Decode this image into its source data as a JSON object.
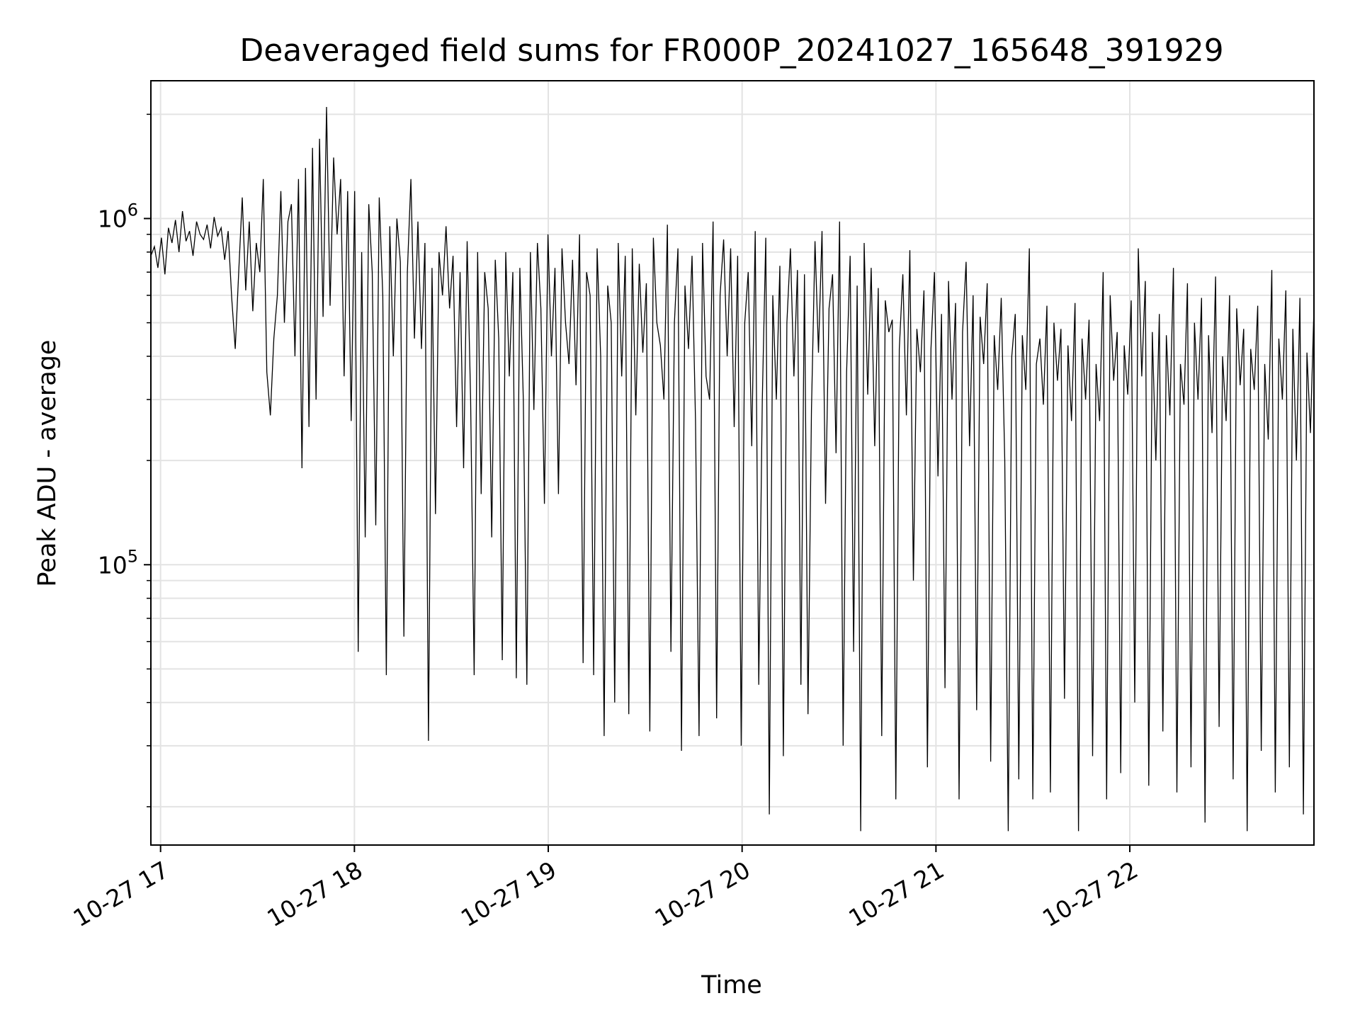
{
  "chart_data": {
    "type": "line",
    "title": "Deaveraged field sums for FR000P_20241027_165648_391929",
    "xlabel": "Time",
    "ylabel": "Peak ADU - average",
    "yscale": "log",
    "ylim": [
      15500,
      2500000
    ],
    "xlim": [
      "2024-10-27 16:57",
      "2024-10-27 22:57"
    ],
    "grid": true,
    "line_color": "#000000",
    "x_ticks": [
      {
        "value": "2024-10-27 17:00",
        "label": "10-27 17"
      },
      {
        "value": "2024-10-27 18:00",
        "label": "10-27 18"
      },
      {
        "value": "2024-10-27 19:00",
        "label": "10-27 19"
      },
      {
        "value": "2024-10-27 20:00",
        "label": "10-27 20"
      },
      {
        "value": "2024-10-27 21:00",
        "label": "10-27 21"
      },
      {
        "value": "2024-10-27 22:00",
        "label": "10-27 22"
      }
    ],
    "y_ticks": [
      {
        "value": 100000,
        "base": "10",
        "exp": "5"
      },
      {
        "value": 1000000,
        "base": "10",
        "exp": "6"
      }
    ],
    "series": [
      {
        "x_start": "2024-10-27 16:57",
        "x_end": "2024-10-27 22:57",
        "values": [
          780000,
          830000,
          720000,
          880000,
          690000,
          940000,
          850000,
          990000,
          800000,
          1050000,
          860000,
          920000,
          780000,
          980000,
          900000,
          870000,
          960000,
          820000,
          1010000,
          890000,
          940000,
          760000,
          920000,
          590000,
          420000,
          700000,
          1150000,
          620000,
          980000,
          540000,
          850000,
          700000,
          1300000,
          360000,
          270000,
          450000,
          600000,
          1200000,
          500000,
          980000,
          1100000,
          400000,
          1300000,
          190000,
          1400000,
          250000,
          1600000,
          300000,
          1700000,
          520000,
          2100000,
          560000,
          1500000,
          900000,
          1300000,
          350000,
          1200000,
          260000,
          1200000,
          56000,
          800000,
          120000,
          1100000,
          700000,
          130000,
          1150000,
          600000,
          48000,
          950000,
          400000,
          1000000,
          750000,
          62000,
          700000,
          1300000,
          450000,
          980000,
          420000,
          850000,
          31000,
          720000,
          140000,
          800000,
          600000,
          950000,
          550000,
          780000,
          250000,
          700000,
          190000,
          860000,
          300000,
          48000,
          800000,
          160000,
          700000,
          550000,
          120000,
          760000,
          450000,
          53000,
          800000,
          350000,
          700000,
          47000,
          720000,
          300000,
          45000,
          800000,
          280000,
          850000,
          550000,
          150000,
          900000,
          400000,
          720000,
          160000,
          820000,
          500000,
          380000,
          760000,
          330000,
          900000,
          52000,
          700000,
          600000,
          48000,
          820000,
          400000,
          32000,
          640000,
          500000,
          40000,
          850000,
          350000,
          780000,
          37000,
          820000,
          270000,
          740000,
          410000,
          650000,
          33000,
          880000,
          500000,
          430000,
          300000,
          960000,
          56000,
          500000,
          820000,
          29000,
          640000,
          420000,
          780000,
          260000,
          32000,
          850000,
          350000,
          300000,
          980000,
          36000,
          600000,
          870000,
          400000,
          820000,
          250000,
          780000,
          30000,
          500000,
          700000,
          220000,
          920000,
          45000,
          300000,
          880000,
          19000,
          600000,
          300000,
          730000,
          28000,
          500000,
          820000,
          350000,
          710000,
          45000,
          690000,
          37000,
          280000,
          860000,
          410000,
          920000,
          150000,
          550000,
          690000,
          210000,
          980000,
          30000,
          360000,
          780000,
          56000,
          640000,
          17000,
          850000,
          310000,
          720000,
          220000,
          630000,
          32000,
          580000,
          470000,
          510000,
          21000,
          420000,
          690000,
          270000,
          810000,
          90000,
          480000,
          360000,
          620000,
          26000,
          420000,
          700000,
          180000,
          530000,
          44000,
          660000,
          300000,
          570000,
          21000,
          470000,
          750000,
          220000,
          600000,
          38000,
          520000,
          380000,
          650000,
          27000,
          460000,
          320000,
          590000,
          200000,
          17000,
          400000,
          530000,
          24000,
          460000,
          320000,
          820000,
          21000,
          380000,
          450000,
          290000,
          560000,
          22000,
          500000,
          340000,
          480000,
          41000,
          430000,
          260000,
          570000,
          17000,
          450000,
          300000,
          510000,
          28000,
          380000,
          260000,
          700000,
          21000,
          600000,
          340000,
          470000,
          25000,
          430000,
          310000,
          580000,
          40000,
          820000,
          350000,
          660000,
          23000,
          470000,
          200000,
          530000,
          33000,
          460000,
          270000,
          720000,
          22000,
          380000,
          290000,
          650000,
          26000,
          500000,
          300000,
          590000,
          18000,
          460000,
          240000,
          680000,
          34000,
          400000,
          260000,
          600000,
          24000,
          550000,
          330000,
          480000,
          17000,
          420000,
          320000,
          560000,
          29000,
          380000,
          230000,
          710000,
          22000,
          450000,
          300000,
          620000,
          26000,
          480000,
          200000,
          590000,
          19000,
          410000,
          240000,
          550000
        ]
      }
    ]
  }
}
